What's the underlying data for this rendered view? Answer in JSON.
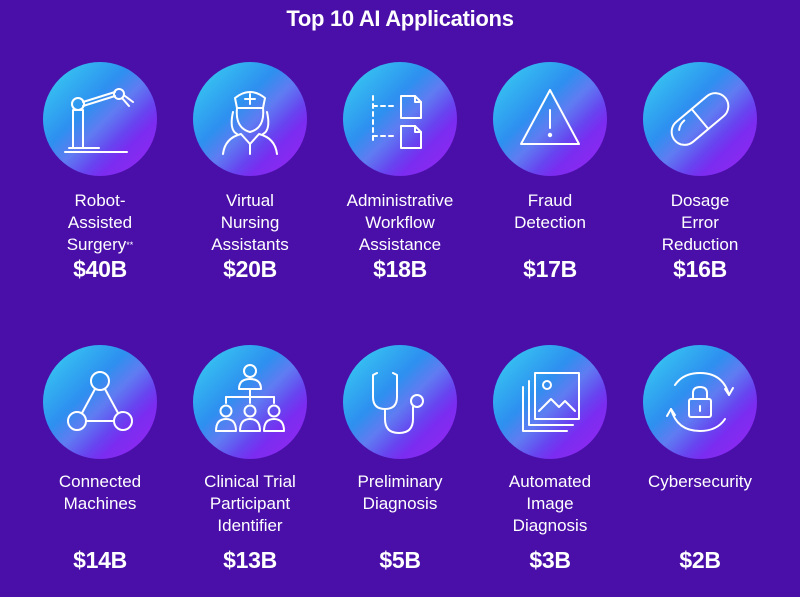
{
  "title": "Top 10 AI Applications",
  "colors": {
    "background": "#4a0fa8",
    "circle_gradient": [
      "#3ad6f2",
      "#2d8ef0",
      "#7a2cf0",
      "#9d27f2"
    ],
    "text": "#ffffff"
  },
  "items": [
    {
      "icon": "robot-arm-icon",
      "label_lines": [
        "Robot-",
        "Assisted",
        "Surgery"
      ],
      "footnote": "**",
      "value": "$40B"
    },
    {
      "icon": "nurse-icon",
      "label_lines": [
        "Virtual",
        "Nursing",
        "Assistants"
      ],
      "value": "$20B"
    },
    {
      "icon": "workflow-documents-icon",
      "label_lines": [
        "Administrative",
        "Workflow",
        "Assistance"
      ],
      "value": "$18B"
    },
    {
      "icon": "warning-triangle-icon",
      "label_lines": [
        "Fraud",
        "Detection"
      ],
      "value": "$17B"
    },
    {
      "icon": "capsule-pill-icon",
      "label_lines": [
        "Dosage",
        "Error",
        "Reduction"
      ],
      "value": "$16B"
    },
    {
      "icon": "connected-nodes-icon",
      "label_lines": [
        "Connected",
        "Machines"
      ],
      "value": "$14B"
    },
    {
      "icon": "participant-hierarchy-icon",
      "label_lines": [
        "Clinical Trial",
        "Participant",
        "Identifier"
      ],
      "value": "$13B"
    },
    {
      "icon": "stethoscope-icon",
      "label_lines": [
        "Preliminary",
        "Diagnosis"
      ],
      "value": "$5B"
    },
    {
      "icon": "image-stack-icon",
      "label_lines": [
        "Automated",
        "Image",
        "Diagnosis"
      ],
      "value": "$3B"
    },
    {
      "icon": "lock-cycle-icon",
      "label_lines": [
        "Cybersecurity"
      ],
      "value": "$2B"
    }
  ]
}
